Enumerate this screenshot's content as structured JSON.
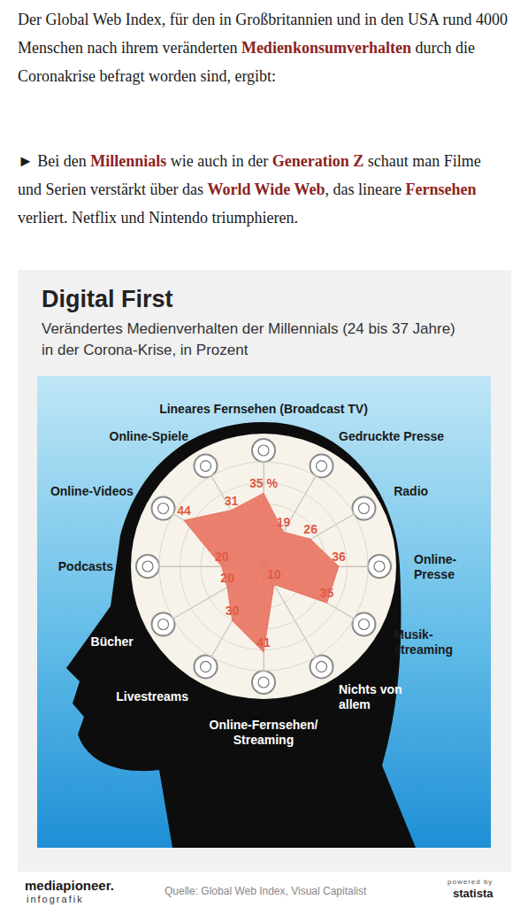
{
  "article": {
    "paragraphs": [
      [
        {
          "text": "Der Global Web Index, für den in Großbritannien und in den USA rund 4000 Menschen nach ihrem veränderten "
        },
        {
          "text": "Medienkonsumverhalten",
          "bold": true
        },
        {
          "text": " durch die Coronakrise befragt worden sind, ergibt:"
        }
      ],
      [
        {
          "text": "► Bei den "
        },
        {
          "text": "Millennials",
          "bold": true
        },
        {
          "text": " wie auch in der "
        },
        {
          "text": "Generation Z",
          "bold": true
        },
        {
          "text": " schaut man Filme und Serien verstärkt über das "
        },
        {
          "text": "World Wide Web",
          "bold": true
        },
        {
          "text": ", das lineare "
        },
        {
          "text": "Fernsehen",
          "bold": true
        },
        {
          "text": " verliert. Netflix und Nintendo triumphieren."
        }
      ]
    ]
  },
  "chart_data": {
    "type": "radar",
    "title": "Digital First",
    "subtitle": "Verändertes Medienverhalten der Millennials (24 bis 37 Jahre)\nin der Corona-Krise, in Prozent",
    "categories": [
      "Lineares Fernsehen (Broadcast TV)",
      "Online-Spiele",
      "Online-Videos",
      "Podcasts",
      "Bücher",
      "Livestreams",
      "Online-Fernsehen/\nStreaming",
      "Nichts von\nallem",
      "Musik-\nstreaming",
      "Online-\nPresse",
      "Radio",
      "Gedruckte Presse"
    ],
    "values": [
      35,
      31,
      44,
      20,
      20,
      30,
      41,
      10,
      35,
      36,
      26,
      19
    ],
    "value_labels": [
      "35 %",
      "31",
      "44",
      "20",
      "20",
      "30",
      "41",
      "10",
      "35",
      "36",
      "26",
      "19"
    ],
    "color": "#e8735f",
    "ylim": [
      0,
      50
    ],
    "yticks": [
      0,
      10,
      20,
      30,
      40,
      50
    ],
    "grid": true,
    "tick_labels": false,
    "data_labels": true
  },
  "footer": {
    "brand": "mediapioneer.",
    "brand_sub": "infografik",
    "source": "Quelle: Global Web Index, Visual Capitalist",
    "powered": "powered by",
    "statista": "statista"
  }
}
